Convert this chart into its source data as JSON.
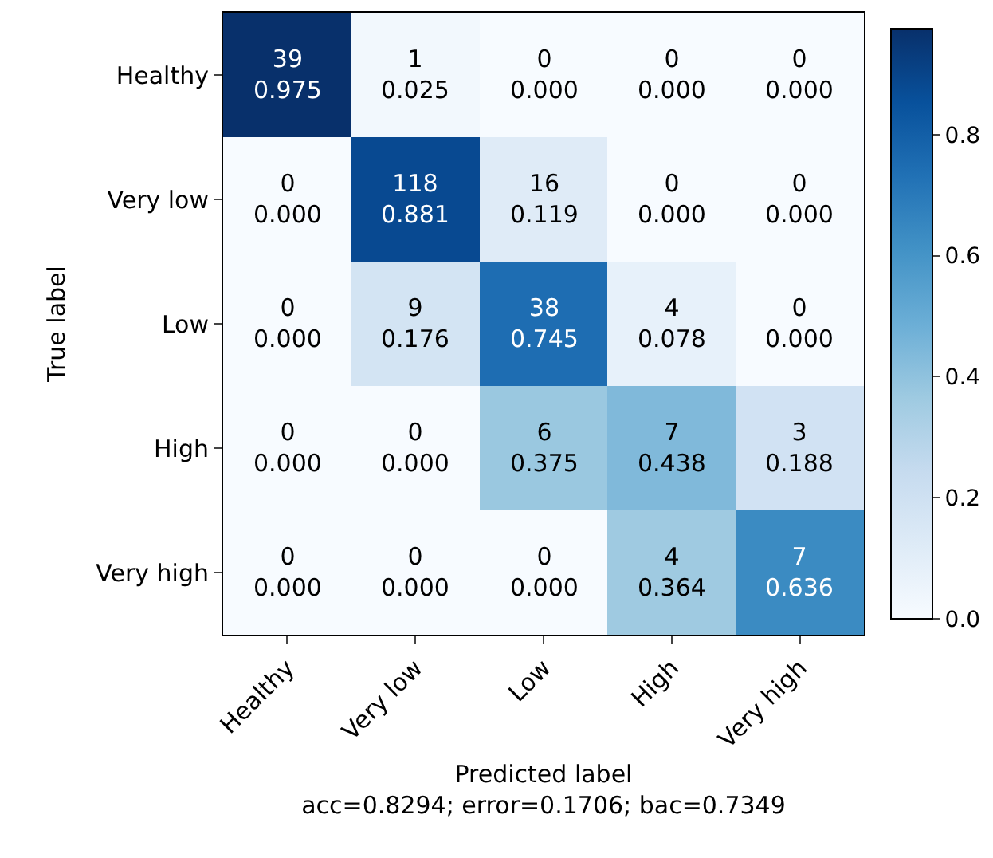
{
  "chart_data": {
    "type": "heatmap",
    "categories": [
      "Healthy",
      "Very low",
      "Low",
      "High",
      "Very high"
    ],
    "y_categories": [
      "Healthy",
      "Very low",
      "Low",
      "High",
      "Very high"
    ],
    "cells": [
      [
        0.975,
        0.025,
        0.0,
        0.0,
        0.0
      ],
      [
        0.0,
        0.881,
        0.119,
        0.0,
        0.0
      ],
      [
        0.0,
        0.176,
        0.745,
        0.078,
        0.0
      ],
      [
        0.0,
        0.0,
        0.375,
        0.438,
        0.188
      ],
      [
        0.0,
        0.0,
        0.0,
        0.364,
        0.636
      ]
    ],
    "cell_labels": [
      [
        "39\n0.975",
        "1\n0.025",
        "0\n0.000",
        "0\n0.000",
        "0\n0.000"
      ],
      [
        "0\n0.000",
        "118\n0.881",
        "16\n0.119",
        "0\n0.000",
        "0\n0.000"
      ],
      [
        "0\n0.000",
        "9\n0.176",
        "38\n0.745",
        "4\n0.078",
        "0\n0.000"
      ],
      [
        "0\n0.000",
        "0\n0.000",
        "6\n0.375",
        "7\n0.438",
        "3\n0.188"
      ],
      [
        "0\n0.000",
        "0\n0.000",
        "0\n0.000",
        "4\n0.364",
        "7\n0.636"
      ]
    ],
    "xlabel": "Predicted label",
    "ylabel": "True label",
    "annotations": [
      "acc=0.8294; error=0.1706; bac=0.7349"
    ],
    "clim": [
      0,
      0.975
    ],
    "cticks": [
      {
        "value": 0,
        "label": "0.0"
      },
      0.2,
      0.4,
      0.6,
      0.8
    ]
  }
}
